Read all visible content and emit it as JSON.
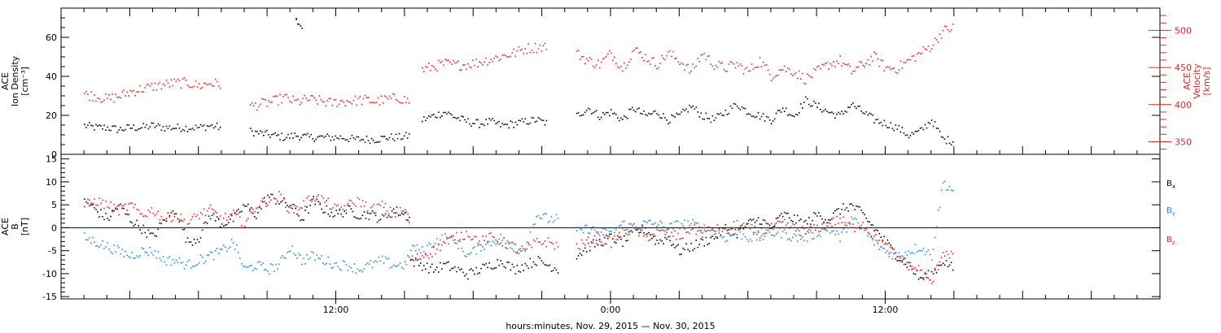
{
  "colors": {
    "axis": "#000000",
    "black": "#000000",
    "red": "#e8251f",
    "blue": "#1e88e5"
  },
  "chart_data": [
    {
      "type": "scatter",
      "ylabel_lines": [
        "ACE",
        "Ion Density",
        "[cm⁻³]"
      ],
      "y2label_lines": [
        "ACE",
        "Velocity",
        "[km/s]"
      ],
      "ylim": [
        0,
        75
      ],
      "yticks": [
        0,
        20,
        40,
        60
      ],
      "y2lim": [
        333,
        530
      ],
      "y2ticks": [
        350,
        400,
        450,
        500
      ],
      "xlim": [
        0,
        48
      ],
      "series": [
        {
          "axis": "left",
          "color": "black",
          "segments": [
            {
              "x": [
                0,
                2,
                4,
                6,
                8,
                10,
                12,
                14,
                16,
                18,
                20,
                22,
                24
              ],
              "y": [
                15,
                14,
                14,
                13,
                14,
                14,
                15,
                14,
                14,
                14,
                14,
                15,
                14
              ]
            },
            {
              "x": [
                29,
                31,
                33,
                35,
                37,
                39,
                41,
                43,
                45,
                47,
                49,
                51,
                53,
                55,
                57
              ],
              "y": [
                12,
                11,
                10,
                9,
                10,
                9,
                9,
                9,
                9,
                8,
                8,
                8,
                9,
                9,
                10
              ]
            },
            {
              "x": [
                59,
                61,
                63,
                65,
                67,
                69,
                71,
                73,
                75,
                77,
                79,
                81
              ],
              "y": [
                18,
                20,
                22,
                19,
                17,
                16,
                17,
                15,
                16,
                17,
                18,
                16
              ]
            },
            {
              "x": [
                86,
                88,
                90,
                92,
                94,
                96,
                98,
                100,
                102,
                104,
                106,
                108,
                110,
                112,
                114,
                116,
                118,
                120,
                122,
                124,
                126,
                128,
                130,
                132,
                134,
                136,
                138,
                140,
                142,
                144,
                146,
                148,
                150,
                152
              ],
              "y": [
                20,
                24,
                20,
                22,
                18,
                24,
                20,
                22,
                18,
                20,
                25,
                20,
                18,
                22,
                26,
                22,
                20,
                18,
                24,
                20,
                28,
                25,
                22,
                20,
                26,
                22,
                18,
                16,
                14,
                10,
                12,
                18,
                8,
                7
              ]
            },
            {
              "x": [
                37,
                38
              ],
              "y": [
                70,
                65
              ]
            }
          ]
        },
        {
          "axis": "right",
          "color": "red",
          "segments": [
            {
              "x": [
                0,
                2,
                4,
                6,
                8,
                10,
                12,
                14,
                16,
                18,
                20,
                22,
                24
              ],
              "y": [
                415,
                412,
                408,
                412,
                418,
                422,
                425,
                428,
                430,
                430,
                426,
                430,
                428
              ]
            },
            {
              "x": [
                29,
                31,
                33,
                35,
                37,
                39,
                41,
                43,
                45,
                47,
                49,
                51,
                53,
                55,
                57
              ],
              "y": [
                398,
                402,
                405,
                410,
                404,
                408,
                406,
                403,
                405,
                406,
                407,
                405,
                408,
                410,
                404
              ]
            },
            {
              "x": [
                59,
                61,
                63,
                65,
                67,
                69,
                71,
                73,
                75,
                77,
                79,
                81
              ],
              "y": [
                448,
                452,
                456,
                454,
                455,
                458,
                462,
                466,
                470,
                476,
                478,
                480
              ]
            },
            {
              "x": [
                86,
                88,
                90,
                92,
                94,
                96,
                98,
                100,
                102,
                104,
                106,
                108,
                110,
                112,
                114,
                116,
                118,
                120,
                122,
                124,
                126,
                128,
                130,
                132,
                134,
                136,
                138,
                140,
                142,
                144,
                146,
                148,
                150,
                152
              ],
              "y": [
                470,
                460,
                455,
                470,
                450,
                475,
                465,
                455,
                470,
                460,
                445,
                470,
                455,
                450,
                455,
                445,
                460,
                440,
                450,
                445,
                435,
                445,
                455,
                460,
                445,
                455,
                465,
                450,
                450,
                460,
                470,
                480,
                500,
                505
              ]
            }
          ]
        }
      ]
    },
    {
      "type": "scatter",
      "ylabel_lines": [
        "ACE",
        "B",
        "[nT]"
      ],
      "ylim": [
        -15.5,
        16
      ],
      "yticks": [
        -15,
        -10,
        -5,
        0,
        5,
        10,
        15
      ],
      "xlim": [
        0,
        48
      ],
      "x_tick_labels": [
        {
          "hour": 12,
          "label": "12:00"
        },
        {
          "hour": 24,
          "label": "0:00"
        },
        {
          "hour": 36,
          "label": "12:00"
        }
      ],
      "xlabel": "hours:minutes, Nov. 29, 2015 — Nov. 30, 2015",
      "legend": [
        {
          "label": "B",
          "sub": "x",
          "color": "black"
        },
        {
          "label": "B",
          "sub": "y",
          "color": "blue"
        },
        {
          "label": "B",
          "sub": "z",
          "color": "red"
        }
      ],
      "series": [
        {
          "name": "Bx",
          "color": "black",
          "segments": [
            {
              "x": [
                0,
                2,
                4,
                6,
                8,
                10,
                12,
                14,
                16,
                18,
                20,
                22,
                24,
                26,
                28,
                30,
                32,
                34,
                36,
                38,
                40,
                42,
                44,
                46,
                48,
                50,
                52,
                54,
                56,
                57
              ],
              "y": [
                6,
                4,
                2,
                5,
                2,
                0,
                -2,
                2,
                4,
                -3,
                -2,
                3,
                1,
                2,
                5,
                3,
                7,
                6,
                5,
                2,
                6,
                4,
                3,
                4,
                3,
                3,
                2,
                4,
                3,
                2
              ]
            },
            {
              "x": [
                57,
                59,
                61,
                63,
                65,
                67,
                69,
                71,
                73,
                75,
                77,
                79,
                81,
                83
              ],
              "y": [
                -7,
                -8,
                -9,
                -8,
                -9,
                -10,
                -9,
                -8,
                -7,
                -9,
                -8,
                -7,
                -8,
                -9
              ]
            },
            {
              "x": [
                86,
                88,
                90,
                92,
                94,
                96,
                98,
                100,
                102,
                104,
                106,
                108,
                110,
                112,
                114,
                116,
                118,
                120,
                122,
                124,
                126,
                128,
                130,
                132,
                134,
                136,
                138,
                140,
                142,
                144,
                146,
                148,
                150,
                152
              ],
              "y": [
                -6,
                -4,
                -3,
                -2,
                -3,
                -1,
                0,
                -3,
                -2,
                -5,
                -4,
                -3,
                -2,
                0,
                -1,
                1,
                2,
                0,
                3,
                2,
                1,
                3,
                2,
                4,
                5,
                3,
                0,
                -3,
                -6,
                -8,
                -11,
                -10,
                -7,
                -9
              ]
            }
          ]
        },
        {
          "name": "By",
          "color": "blue",
          "segments": [
            {
              "x": [
                0,
                2,
                4,
                6,
                8,
                10,
                12,
                14,
                16,
                18,
                20,
                22,
                24,
                26,
                28,
                30,
                32,
                34,
                36,
                38,
                40,
                42,
                44,
                46,
                48,
                50,
                52,
                54,
                56,
                57
              ],
              "y": [
                -2,
                -3,
                -4,
                -5,
                -6,
                -5,
                -5,
                -7,
                -7,
                -8,
                -7,
                -6,
                -5,
                -3,
                -9,
                -8,
                -9,
                -8,
                -4,
                -7,
                -6,
                -7,
                -8,
                -8,
                -9,
                -8,
                -7,
                -8,
                -8,
                -6
              ]
            },
            {
              "x": [
                57,
                59,
                61,
                63,
                65,
                67,
                69,
                71,
                73,
                75,
                77,
                79,
                81,
                83
              ],
              "y": [
                -4,
                -5,
                -3,
                -2,
                -3,
                -6,
                -4,
                -3,
                -2,
                -5,
                -4,
                3,
                2,
                2
              ]
            },
            {
              "x": [
                86,
                88,
                90,
                92,
                94,
                96,
                98,
                100,
                102,
                104,
                106,
                108,
                110,
                112,
                114,
                116,
                118,
                120,
                122,
                124,
                126,
                128,
                130,
                132,
                134,
                136,
                138,
                140,
                142,
                144,
                146,
                148,
                150,
                152
              ],
              "y": [
                -1,
                0,
                -1,
                -1,
                1,
                0,
                1,
                1,
                0,
                1,
                1,
                0,
                -1,
                -2,
                -1,
                -2,
                -2,
                -1,
                -1,
                -2,
                -2,
                -1,
                0,
                -2,
                2,
                0,
                -3,
                -5,
                -6,
                -5,
                -4,
                -6,
                10,
                8
              ]
            }
          ]
        },
        {
          "name": "Bz",
          "color": "red",
          "segments": [
            {
              "x": [
                0,
                2,
                4,
                6,
                8,
                10,
                12,
                14,
                16,
                18,
                20,
                22,
                24,
                26,
                28,
                30,
                32,
                34,
                36,
                38,
                40,
                42,
                44,
                46,
                48,
                50,
                52,
                54,
                56,
                57
              ],
              "y": [
                5,
                6,
                5,
                4,
                5,
                3,
                4,
                2,
                3,
                1,
                3,
                4,
                2,
                3,
                1,
                5,
                6,
                7,
                4,
                5,
                7,
                6,
                4,
                5,
                6,
                4,
                5,
                3,
                4,
                1
              ]
            },
            {
              "x": [
                57,
                59,
                61,
                63,
                65,
                67,
                69,
                71,
                73,
                75,
                77,
                79,
                81,
                83
              ],
              "y": [
                -7,
                -6,
                -5,
                -3,
                -2,
                -1,
                -3,
                -2,
                -3,
                -4,
                -5,
                -3,
                -3,
                -4
              ]
            },
            {
              "x": [
                86,
                88,
                90,
                92,
                94,
                96,
                98,
                100,
                102,
                104,
                106,
                108,
                110,
                112,
                114,
                116,
                118,
                120,
                122,
                124,
                126,
                128,
                130,
                132,
                134,
                136,
                138,
                140,
                142,
                144,
                146,
                148,
                150,
                152
              ],
              "y": [
                -4,
                -3,
                -2,
                -3,
                -1,
                0,
                -2,
                -1,
                -1,
                -2,
                0,
                -1,
                0,
                -1,
                1,
                0,
                -1,
                0,
                1,
                0,
                -1,
                0,
                1,
                2,
                0,
                1,
                -2,
                -4,
                -6,
                -8,
                -9,
                -12,
                -5,
                -6
              ]
            }
          ]
        }
      ]
    }
  ]
}
